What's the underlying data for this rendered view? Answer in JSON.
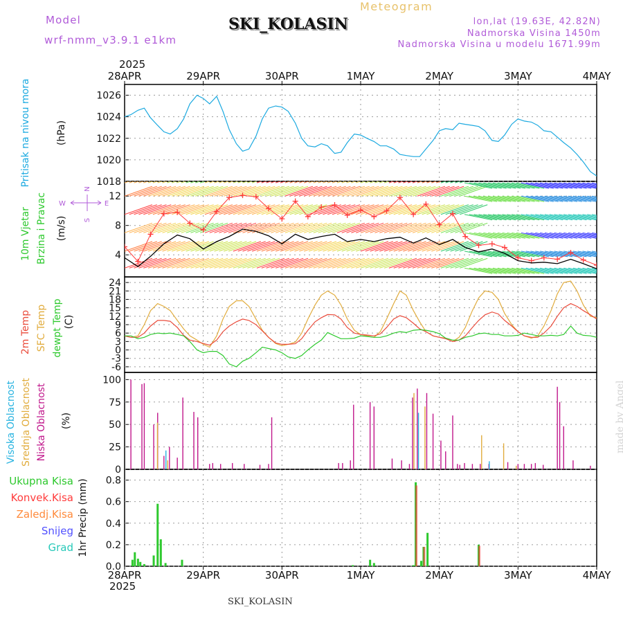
{
  "header": {
    "model_label": "Model",
    "model_name": "wrf-nmm_v3.9.1 e1km",
    "meteogram_label": "Meteogram",
    "station": "SKI_KOLASIN",
    "coords": "lon,lat (19.63E, 42.82N)",
    "elevation": "Nadmorska Visina 1450m",
    "model_elevation": "Nadmorska Visina u modelu 1671.99m",
    "year_top": "2025"
  },
  "footer": {
    "station": "SKI_KOLASIN",
    "year": "2025",
    "credit": "made by Angel"
  },
  "time_axis": {
    "labels": [
      "28APR",
      "29APR",
      "30APR",
      "1MAY",
      "2MAY",
      "3MAY",
      "4MAY"
    ],
    "days": 6
  },
  "colors": {
    "pressure": "#1ba9e0",
    "speed": "#000000",
    "gust": "#ff3b3b",
    "temp2m": "#ea4b3b",
    "sfc": "#e1ac3d",
    "dewpt": "#2ec92e",
    "cloud_high": "#27b3e0",
    "cloud_mid": "#e1ac3d",
    "cloud_low": "#c0168b",
    "precip_total": "#2ec92e",
    "precip_conv": "#ff3b3b",
    "precip_freezing": "#ff8a3b",
    "precip_snow": "#5050ff",
    "precip_grad": "#27c9b9"
  },
  "panels": {
    "pressure": {
      "labels": [
        "Pritisak na nivou mora"
      ],
      "unit": "(hPa)"
    },
    "wind": {
      "labels": [
        "10m Vjetar",
        "Brzina i Pravac"
      ],
      "unit": "(m/s)",
      "compass": [
        "N",
        "E",
        "S",
        "W"
      ]
    },
    "temp": {
      "labels": [
        "2m Temp",
        "SFC Temp",
        "dewpt Temp"
      ],
      "unit": "(C)"
    },
    "cloud": {
      "labels": [
        "Visoka Oblacnost",
        "Srednja Oblacnost",
        "Niska Oblacnost"
      ],
      "unit": "(%)"
    },
    "precip": {
      "labels": [
        "Ukupna Kisa",
        "Konvek.Kisa",
        "Zaledj.Kisa",
        "Snijeg",
        "Grad"
      ],
      "unit": "1hr Precip (mm)"
    }
  },
  "chart_data": [
    {
      "type": "line",
      "title": "",
      "ylabel": "Pritisak na nivou mora (hPa)",
      "ylim": [
        1018,
        1027
      ],
      "yticks": [
        1018,
        1020,
        1022,
        1024,
        1026
      ],
      "series": [
        {
          "name": "Pritisak na nivou mora",
          "x": [
            0,
            0.08,
            0.17,
            0.25,
            0.33,
            0.42,
            0.5,
            0.58,
            0.67,
            0.75,
            0.83,
            0.92,
            1,
            1.08,
            1.17,
            1.25,
            1.33,
            1.42,
            1.5,
            1.58,
            1.67,
            1.75,
            1.83,
            1.92,
            2,
            2.08,
            2.17,
            2.25,
            2.33,
            2.42,
            2.5,
            2.58,
            2.67,
            2.75,
            2.83,
            2.92,
            3,
            3.08,
            3.17,
            3.25,
            3.33,
            3.42,
            3.5,
            3.58,
            3.67,
            3.75,
            3.83,
            3.92,
            4,
            4.08,
            4.17,
            4.25,
            4.33,
            4.42,
            4.5,
            4.58,
            4.67,
            4.75,
            4.83,
            4.92,
            5,
            5.08,
            5.17,
            5.25,
            5.33,
            5.42,
            5.5,
            5.58,
            5.67,
            5.75,
            5.83,
            5.92,
            6
          ],
          "values": [
            1024,
            1024.2,
            1024.6,
            1024.8,
            1023.9,
            1023.2,
            1022.6,
            1022.4,
            1022.9,
            1023.8,
            1025.2,
            1026,
            1025.7,
            1025.2,
            1025.9,
            1024.5,
            1022.8,
            1021.5,
            1020.8,
            1021,
            1022.2,
            1023.8,
            1024.8,
            1025,
            1024.9,
            1024.5,
            1023.4,
            1022,
            1021.3,
            1021.2,
            1021.5,
            1021.3,
            1020.6,
            1020.7,
            1021.6,
            1022.4,
            1022.3,
            1022,
            1021.7,
            1021.3,
            1021.3,
            1021,
            1020.5,
            1020.4,
            1020.3,
            1020.3,
            1021,
            1021.8,
            1022.7,
            1022.9,
            1022.8,
            1023.4,
            1023.3,
            1023.2,
            1023.1,
            1022.7,
            1021.8,
            1021.7,
            1022.3,
            1023.3,
            1023.8,
            1023.6,
            1023.5,
            1023.2,
            1022.7,
            1022.6,
            1022.1,
            1021.6,
            1021.1,
            1020.5,
            1019.8,
            1018.9,
            1018.5
          ]
        }
      ]
    },
    {
      "type": "line",
      "title": "",
      "ylabel": "10m Vjetar Brzina i Pravac (m/s)",
      "ylim": [
        1,
        14
      ],
      "yticks": [
        4,
        8,
        12
      ],
      "series": [
        {
          "name": "speed",
          "x": [
            0,
            0.17,
            0.33,
            0.5,
            0.67,
            0.83,
            1,
            1.17,
            1.33,
            1.5,
            1.67,
            1.83,
            2,
            2.17,
            2.33,
            2.5,
            2.67,
            2.83,
            3,
            3.17,
            3.33,
            3.5,
            3.67,
            3.83,
            4,
            4.17,
            4.33,
            4.5,
            4.67,
            4.83,
            5,
            5.17,
            5.33,
            5.5,
            5.67,
            5.83,
            6
          ],
          "values": [
            3.6,
            2.4,
            3.8,
            5.5,
            6.7,
            6.2,
            4.8,
            5.8,
            6.5,
            7.5,
            7.2,
            6.6,
            5.5,
            6.8,
            6.1,
            6.5,
            6.8,
            5.8,
            6.1,
            5.8,
            6.2,
            6.4,
            5.6,
            6.3,
            5.4,
            6.1,
            5.0,
            4.4,
            4.8,
            4.2,
            3.2,
            2.9,
            3.0,
            2.8,
            3.4,
            2.8,
            2.1
          ]
        },
        {
          "name": "gust",
          "x": [
            0,
            0.17,
            0.33,
            0.5,
            0.67,
            0.83,
            1,
            1.17,
            1.33,
            1.5,
            1.67,
            1.83,
            2,
            2.17,
            2.33,
            2.5,
            2.67,
            2.83,
            3,
            3.17,
            3.33,
            3.5,
            3.67,
            3.83,
            4,
            4.17,
            4.33,
            4.5,
            4.67,
            4.83,
            5,
            5.17,
            5.33,
            5.5,
            5.67,
            5.83,
            6
          ],
          "values": [
            5.1,
            3.1,
            6.8,
            9.6,
            9.8,
            8.3,
            7.4,
            9.9,
            11.8,
            12.1,
            11.9,
            10.3,
            8.9,
            11.3,
            9.2,
            10.5,
            10.8,
            9.4,
            10.1,
            9.2,
            10.0,
            11.8,
            9.5,
            10.9,
            8.1,
            9.6,
            6.5,
            5.3,
            5.5,
            5.0,
            3.6,
            3.2,
            3.6,
            3.4,
            4.3,
            3.3,
            2.6
          ]
        }
      ]
    },
    {
      "type": "line",
      "title": "",
      "ylabel": "(C)",
      "ylim": [
        -8,
        26
      ],
      "yticks": [
        -6,
        -3,
        0,
        3,
        6,
        9,
        12,
        15,
        18,
        21,
        24
      ],
      "x": [
        0,
        0.08,
        0.17,
        0.25,
        0.33,
        0.42,
        0.5,
        0.58,
        0.67,
        0.75,
        0.83,
        0.92,
        1,
        1.08,
        1.17,
        1.25,
        1.33,
        1.42,
        1.5,
        1.58,
        1.67,
        1.75,
        1.83,
        1.92,
        2,
        2.08,
        2.17,
        2.25,
        2.33,
        2.42,
        2.5,
        2.58,
        2.67,
        2.75,
        2.83,
        2.92,
        3,
        3.08,
        3.17,
        3.25,
        3.33,
        3.42,
        3.5,
        3.58,
        3.67,
        3.75,
        3.83,
        3.92,
        4,
        4.08,
        4.17,
        4.25,
        4.33,
        4.42,
        4.5,
        4.58,
        4.67,
        4.75,
        4.83,
        4.92,
        5,
        5.08,
        5.17,
        5.25,
        5.33,
        5.42,
        5.5,
        5.58,
        5.67,
        5.75,
        5.83,
        5.92,
        6
      ],
      "series": [
        {
          "name": "2m Temp",
          "values": [
            5,
            4.5,
            4.5,
            6,
            8.5,
            10.5,
            10.5,
            10.2,
            8,
            5.2,
            3.5,
            3,
            2.3,
            1.7,
            3.5,
            6.5,
            8.5,
            10,
            11,
            10.5,
            9,
            6.8,
            4.5,
            2.5,
            2,
            2,
            2.2,
            4,
            7,
            10,
            11.5,
            12.6,
            12.5,
            11,
            8,
            6,
            5.5,
            5.3,
            5,
            5.7,
            8,
            11,
            12.2,
            11.5,
            9.5,
            7.5,
            6.5,
            5,
            4.5,
            4,
            3,
            3.5,
            5,
            8,
            10.5,
            12.5,
            13.5,
            12.8,
            10.5,
            8.5,
            6.5,
            5,
            4.5,
            4.5,
            6,
            8.5,
            12,
            15,
            16.5,
            15.5,
            14,
            12.5,
            11
          ]
        },
        {
          "name": "SFC Temp",
          "values": [
            5,
            4.5,
            5,
            9,
            14,
            16.5,
            15.5,
            14,
            10.5,
            7.5,
            5,
            3.5,
            2,
            1,
            5,
            11,
            15.5,
            17.5,
            17.5,
            15.5,
            11,
            7,
            4.5,
            2.3,
            1.5,
            2,
            2.8,
            6,
            11,
            16,
            19.5,
            21,
            19.5,
            16,
            11,
            7,
            5.5,
            5,
            4.5,
            6.5,
            11,
            16.5,
            21,
            19.5,
            14,
            10,
            6.5,
            5,
            4.5,
            4.2,
            3,
            4.5,
            8,
            14,
            18.5,
            21,
            20.5,
            18,
            13,
            9,
            6.5,
            5,
            4.2,
            5,
            8.5,
            14,
            20,
            24,
            24.5,
            21,
            16,
            12,
            11.5
          ]
        },
        {
          "name": "dewpt Temp",
          "values": [
            5,
            5,
            4,
            4.5,
            5.5,
            6,
            5.8,
            6,
            5.5,
            5,
            3,
            0,
            -1,
            -0.5,
            -0.5,
            -2,
            -5,
            -6,
            -4,
            -3,
            -1,
            1,
            0.5,
            0,
            -1,
            -2.5,
            -3,
            -2,
            0,
            2,
            3.5,
            6.2,
            5,
            4,
            4,
            4.2,
            5,
            4.8,
            4.5,
            4.5,
            5,
            6,
            6.5,
            6.2,
            7,
            7.2,
            7,
            6.5,
            5.8,
            4.2,
            3.5,
            3.5,
            4.5,
            5,
            5.8,
            6,
            5.5,
            5.5,
            5,
            5,
            5.2,
            6,
            5.5,
            5,
            5,
            5.2,
            5,
            5.5,
            8.5,
            6,
            5.2,
            5,
            4.5
          ]
        }
      ]
    },
    {
      "type": "bar",
      "title": "",
      "ylabel": "(%)",
      "ylim": [
        0,
        100
      ],
      "yticks": [
        0,
        25,
        50,
        75,
        100
      ],
      "series": [
        {
          "name": "Niska Oblacnost",
          "x": [
            0.08,
            0.22,
            0.25,
            0.37,
            0.42,
            0.5,
            0.57,
            0.67,
            0.74,
            0.88,
            0.93,
            1.08,
            1.12,
            1.22,
            1.37,
            1.52,
            1.72,
            1.83,
            1.87,
            2.72,
            2.77,
            2.87,
            2.91,
            3.12,
            3.17,
            3.4,
            3.52,
            3.62,
            3.66,
            3.72,
            3.84,
            3.92,
            4.02,
            4.08,
            4.17,
            4.23,
            4.26,
            4.32,
            4.42,
            4.52,
            4.63,
            4.87,
            5.0,
            5.08,
            5.17,
            5.22,
            5.32,
            5.5,
            5.53,
            5.58,
            5.7,
            5.92
          ],
          "values": [
            100,
            95,
            96,
            50,
            63,
            15,
            25,
            13,
            80,
            64,
            58,
            6,
            7,
            6,
            7,
            6,
            5,
            6,
            58,
            7,
            7,
            10,
            72,
            75,
            70,
            12,
            10,
            6,
            80,
            90,
            85,
            62,
            32,
            20,
            60,
            6,
            5,
            7,
            6,
            6,
            6,
            8,
            6,
            6,
            6,
            7,
            5,
            92,
            75,
            48,
            10,
            4
          ]
        },
        {
          "name": "Srednja Oblacnost",
          "x": [
            0.4,
            0.53,
            3.66,
            3.8,
            4.52,
            4.8,
            4.96
          ],
          "values": [
            52,
            10,
            85,
            70,
            38,
            29,
            4
          ]
        },
        {
          "name": "Visoka Oblacnost",
          "x": [
            0.49,
            3.7,
            4.6
          ],
          "values": [
            21,
            63,
            9
          ]
        }
      ]
    },
    {
      "type": "bar",
      "title": "",
      "ylabel": "1hr Precip (mm)",
      "ylim": [
        0,
        0.9
      ],
      "yticks": [
        0,
        0.2,
        0.4,
        0.6,
        0.8
      ],
      "series": [
        {
          "name": "Ukupna Kisa",
          "x": [
            0.1,
            0.13,
            0.17,
            0.2,
            0.25,
            0.37,
            0.42,
            0.46,
            0.52,
            0.73,
            2.9,
            3.12,
            3.17,
            3.67,
            3.7,
            3.77,
            3.8,
            3.85,
            4.5
          ],
          "values": [
            0.06,
            0.13,
            0.07,
            0.04,
            0.02,
            0.1,
            0.58,
            0.25,
            0.03,
            0.06,
            0.01,
            0.06,
            0.03,
            0.01,
            0.78,
            0.05,
            0.18,
            0.31,
            0.2
          ]
        },
        {
          "name": "Konvek.Kisa",
          "x": [
            3.7,
            3.8,
            4.5
          ],
          "values": [
            0.75,
            0.18,
            0.19
          ]
        }
      ]
    }
  ]
}
